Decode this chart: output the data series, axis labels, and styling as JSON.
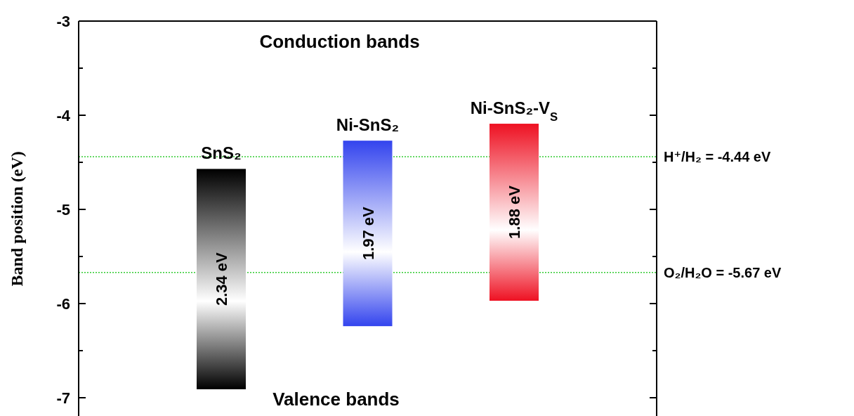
{
  "chart_data": {
    "type": "bar",
    "ylabel": "Band position (eV)",
    "categories": [
      "SnS₂",
      "Ni-SnS₂",
      "Ni-SnS₂-V$_{S}$"
    ],
    "base": [
      -6.91,
      -6.24,
      -5.97
    ],
    "values": [
      2.34,
      1.97,
      1.88
    ],
    "colors": [
      "#000000",
      "#3344ee",
      "#ee1122"
    ],
    "value_labels": [
      "2.34 eV",
      "1.97 eV",
      "1.88 eV"
    ],
    "ylim": [
      -7.2,
      -3
    ],
    "yticks": [
      -3,
      {
        "value": -3.5,
        "label": null
      },
      -4,
      {
        "value": -4.5,
        "label": null
      },
      -5,
      {
        "value": -5.5,
        "label": null
      },
      -6,
      {
        "value": -6.5,
        "label": null
      },
      -7
    ],
    "tick_labels": "y",
    "ref_lines": [
      {
        "axis": "y",
        "value": -4.44,
        "label": "H⁺/H₂ = -4.44 eV",
        "color": "#33cc33",
        "line_style": "dotted"
      },
      {
        "axis": "y",
        "value": -5.67,
        "label": "O₂/H₂O = -5.67 eV",
        "color": "#33cc33",
        "line_style": "dotted"
      }
    ],
    "annotations": [
      "Conduction bands",
      "Valence bands"
    ]
  }
}
